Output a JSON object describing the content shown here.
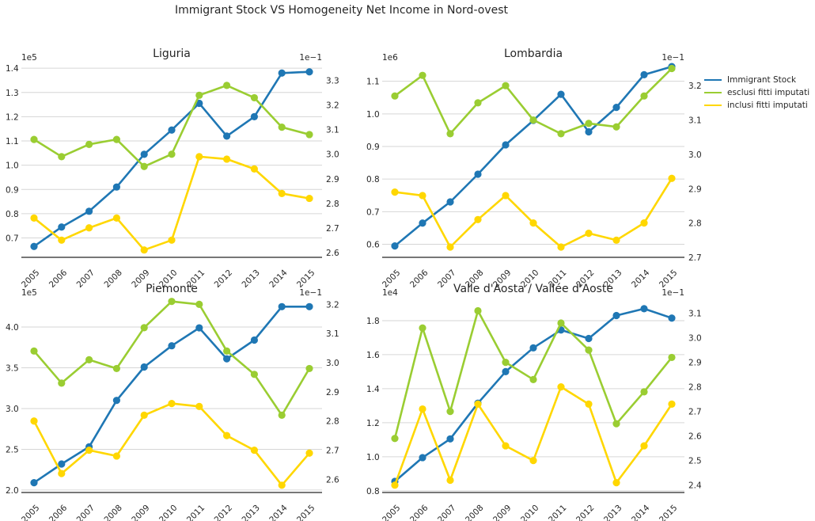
{
  "suptitle": "Immigrant Stock VS Homogeneity Net Income in Nord-ovest",
  "legend": {
    "items": [
      {
        "label": "Immigrant Stock",
        "color": "#1f77b4"
      },
      {
        "label": "esclusi fitti imputati",
        "color": "#9acd32"
      },
      {
        "label": "inclusi fitti imputati",
        "color": "#ffd700"
      }
    ]
  },
  "chart_data": [
    {
      "type": "line",
      "title": "Liguria",
      "categories": [
        "2005",
        "2006",
        "2007",
        "2008",
        "2009",
        "2010",
        "2011",
        "2012",
        "2013",
        "2014",
        "2015"
      ],
      "left_axis": {
        "multiplier": "1e5",
        "ylim": [
          0.62,
          1.42
        ],
        "ticks": [
          "0.7",
          "0.8",
          "0.9",
          "1.0",
          "1.1",
          "1.2",
          "1.3",
          "1.4"
        ],
        "tick_values": [
          0.7,
          0.8,
          0.9,
          1.0,
          1.1,
          1.2,
          1.3,
          1.4
        ]
      },
      "right_axis": {
        "multiplier": "1e−1",
        "ylim": [
          2.58,
          3.37
        ],
        "ticks": [
          "2.6",
          "2.7",
          "2.8",
          "2.9",
          "3.0",
          "3.1",
          "3.2",
          "3.3"
        ],
        "tick_values": [
          2.6,
          2.7,
          2.8,
          2.9,
          3.0,
          3.1,
          3.2,
          3.3
        ]
      },
      "series": [
        {
          "name": "Immigrant Stock",
          "axis": "left",
          "color": "#1f77b4",
          "values": [
            0.665,
            0.745,
            0.81,
            0.91,
            1.045,
            1.145,
            1.255,
            1.12,
            1.2,
            1.38,
            1.385
          ]
        },
        {
          "name": "esclusi fitti imputati",
          "axis": "right",
          "color": "#9acd32",
          "values": [
            3.06,
            2.99,
            3.04,
            3.06,
            2.95,
            3.0,
            3.24,
            3.28,
            3.23,
            3.11,
            3.08
          ]
        },
        {
          "name": "inclusi fitti imputati",
          "axis": "right",
          "color": "#ffd700",
          "values": [
            2.74,
            2.65,
            2.7,
            2.74,
            2.61,
            2.65,
            2.99,
            2.98,
            2.94,
            2.84,
            2.82
          ]
        }
      ]
    },
    {
      "type": "line",
      "title": "Lombardia",
      "categories": [
        "2005",
        "2006",
        "2007",
        "2008",
        "2009",
        "2010",
        "2011",
        "2012",
        "2013",
        "2014",
        "2015"
      ],
      "left_axis": {
        "multiplier": "1e6",
        "ylim": [
          0.56,
          1.155
        ],
        "ticks": [
          "0.6",
          "0.7",
          "0.8",
          "0.9",
          "1.0",
          "1.1"
        ],
        "tick_values": [
          0.6,
          0.7,
          0.8,
          0.9,
          1.0,
          1.1
        ]
      },
      "right_axis": {
        "multiplier": "1e−1",
        "ylim": [
          2.7,
          3.265
        ],
        "ticks": [
          "2.7",
          "2.8",
          "2.9",
          "3.0",
          "3.1",
          "3.2"
        ],
        "tick_values": [
          2.7,
          2.8,
          2.9,
          3.0,
          3.1,
          3.2
        ]
      },
      "series": [
        {
          "name": "Immigrant Stock",
          "axis": "left",
          "color": "#1f77b4",
          "values": [
            0.595,
            0.665,
            0.73,
            0.815,
            0.905,
            0.98,
            1.06,
            0.945,
            1.02,
            1.12,
            1.145
          ]
        },
        {
          "name": "esclusi fitti imputati",
          "axis": "right",
          "color": "#9acd32",
          "values": [
            3.17,
            3.23,
            3.06,
            3.15,
            3.2,
            3.1,
            3.06,
            3.09,
            3.08,
            3.17,
            3.25
          ]
        },
        {
          "name": "inclusi fitti imputati",
          "axis": "right",
          "color": "#ffd700",
          "values": [
            2.89,
            2.88,
            2.73,
            2.81,
            2.88,
            2.8,
            2.73,
            2.77,
            2.75,
            2.8,
            2.93
          ]
        }
      ]
    },
    {
      "type": "line",
      "title": "Piemonte",
      "categories": [
        "2005",
        "2006",
        "2007",
        "2008",
        "2009",
        "2010",
        "2011",
        "2012",
        "2013",
        "2014",
        "2015"
      ],
      "left_axis": {
        "multiplier": "1e5",
        "ylim": [
          1.97,
          4.35
        ],
        "ticks": [
          "2.0",
          "2.5",
          "3.0",
          "3.5",
          "4.0"
        ],
        "tick_values": [
          2.0,
          2.5,
          3.0,
          3.5,
          4.0
        ]
      },
      "right_axis": {
        "multiplier": "1e−1",
        "ylim": [
          2.555,
          3.22
        ],
        "ticks": [
          "2.6",
          "2.7",
          "2.8",
          "2.9",
          "3.0",
          "3.1",
          "3.2"
        ],
        "tick_values": [
          2.6,
          2.7,
          2.8,
          2.9,
          3.0,
          3.1,
          3.2
        ]
      },
      "series": [
        {
          "name": "Immigrant Stock",
          "axis": "left",
          "color": "#1f77b4",
          "values": [
            2.09,
            2.32,
            2.53,
            3.1,
            3.51,
            3.77,
            3.99,
            3.61,
            3.84,
            4.25,
            4.25
          ]
        },
        {
          "name": "esclusi fitti imputati",
          "axis": "right",
          "color": "#9acd32",
          "values": [
            3.04,
            2.93,
            3.01,
            2.98,
            3.12,
            3.21,
            3.2,
            3.04,
            2.96,
            2.82,
            2.98
          ]
        },
        {
          "name": "inclusi fitti imputati",
          "axis": "right",
          "color": "#ffd700",
          "values": [
            2.8,
            2.62,
            2.7,
            2.68,
            2.82,
            2.86,
            2.85,
            2.75,
            2.7,
            2.58,
            2.69
          ]
        }
      ]
    },
    {
      "type": "line",
      "title": "Valle d'Aosta / Vallée d'Aoste",
      "categories": [
        "2005",
        "2006",
        "2007",
        "2008",
        "2009",
        "2010",
        "2011",
        "2012",
        "2013",
        "2014",
        "2015"
      ],
      "left_axis": {
        "multiplier": "1e4",
        "ylim": [
          0.79,
          1.93
        ],
        "ticks": [
          "0.8",
          "1.0",
          "1.2",
          "1.4",
          "1.6",
          "1.8"
        ],
        "tick_values": [
          0.8,
          1.0,
          1.2,
          1.4,
          1.6,
          1.8
        ]
      },
      "right_axis": {
        "multiplier": "1e−1",
        "ylim": [
          2.37,
          3.16
        ],
        "ticks": [
          "2.4",
          "2.5",
          "2.6",
          "2.7",
          "2.8",
          "2.9",
          "3.0",
          "3.1"
        ],
        "tick_values": [
          2.4,
          2.5,
          2.6,
          2.7,
          2.8,
          2.9,
          3.0,
          3.1
        ]
      },
      "series": [
        {
          "name": "Immigrant Stock",
          "axis": "left",
          "color": "#1f77b4",
          "values": [
            0.855,
            0.995,
            1.105,
            1.315,
            1.5,
            1.64,
            1.745,
            1.695,
            1.83,
            1.87,
            1.815
          ]
        },
        {
          "name": "esclusi fitti imputati",
          "axis": "right",
          "color": "#9acd32",
          "values": [
            2.59,
            3.04,
            2.7,
            3.11,
            2.9,
            2.83,
            3.06,
            2.95,
            2.65,
            2.78,
            2.92
          ]
        },
        {
          "name": "inclusi fitti imputati",
          "axis": "right",
          "color": "#ffd700",
          "values": [
            2.4,
            2.71,
            2.42,
            2.73,
            2.56,
            2.5,
            2.8,
            2.73,
            2.41,
            2.56,
            2.73
          ]
        }
      ]
    }
  ]
}
